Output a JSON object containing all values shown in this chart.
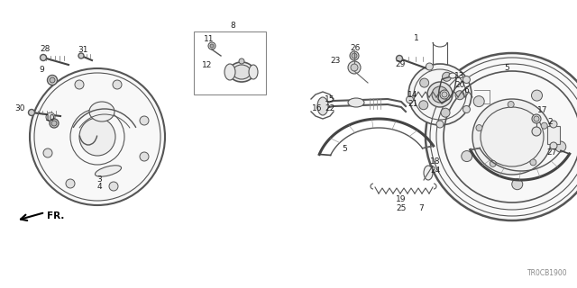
{
  "bg_color": "#ffffff",
  "fig_width": 6.4,
  "fig_height": 3.2,
  "dpi": 100,
  "diagram_code": "TR0CB1900",
  "line_color": "#555555",
  "text_color": "#222222",
  "font_size": 6.5
}
